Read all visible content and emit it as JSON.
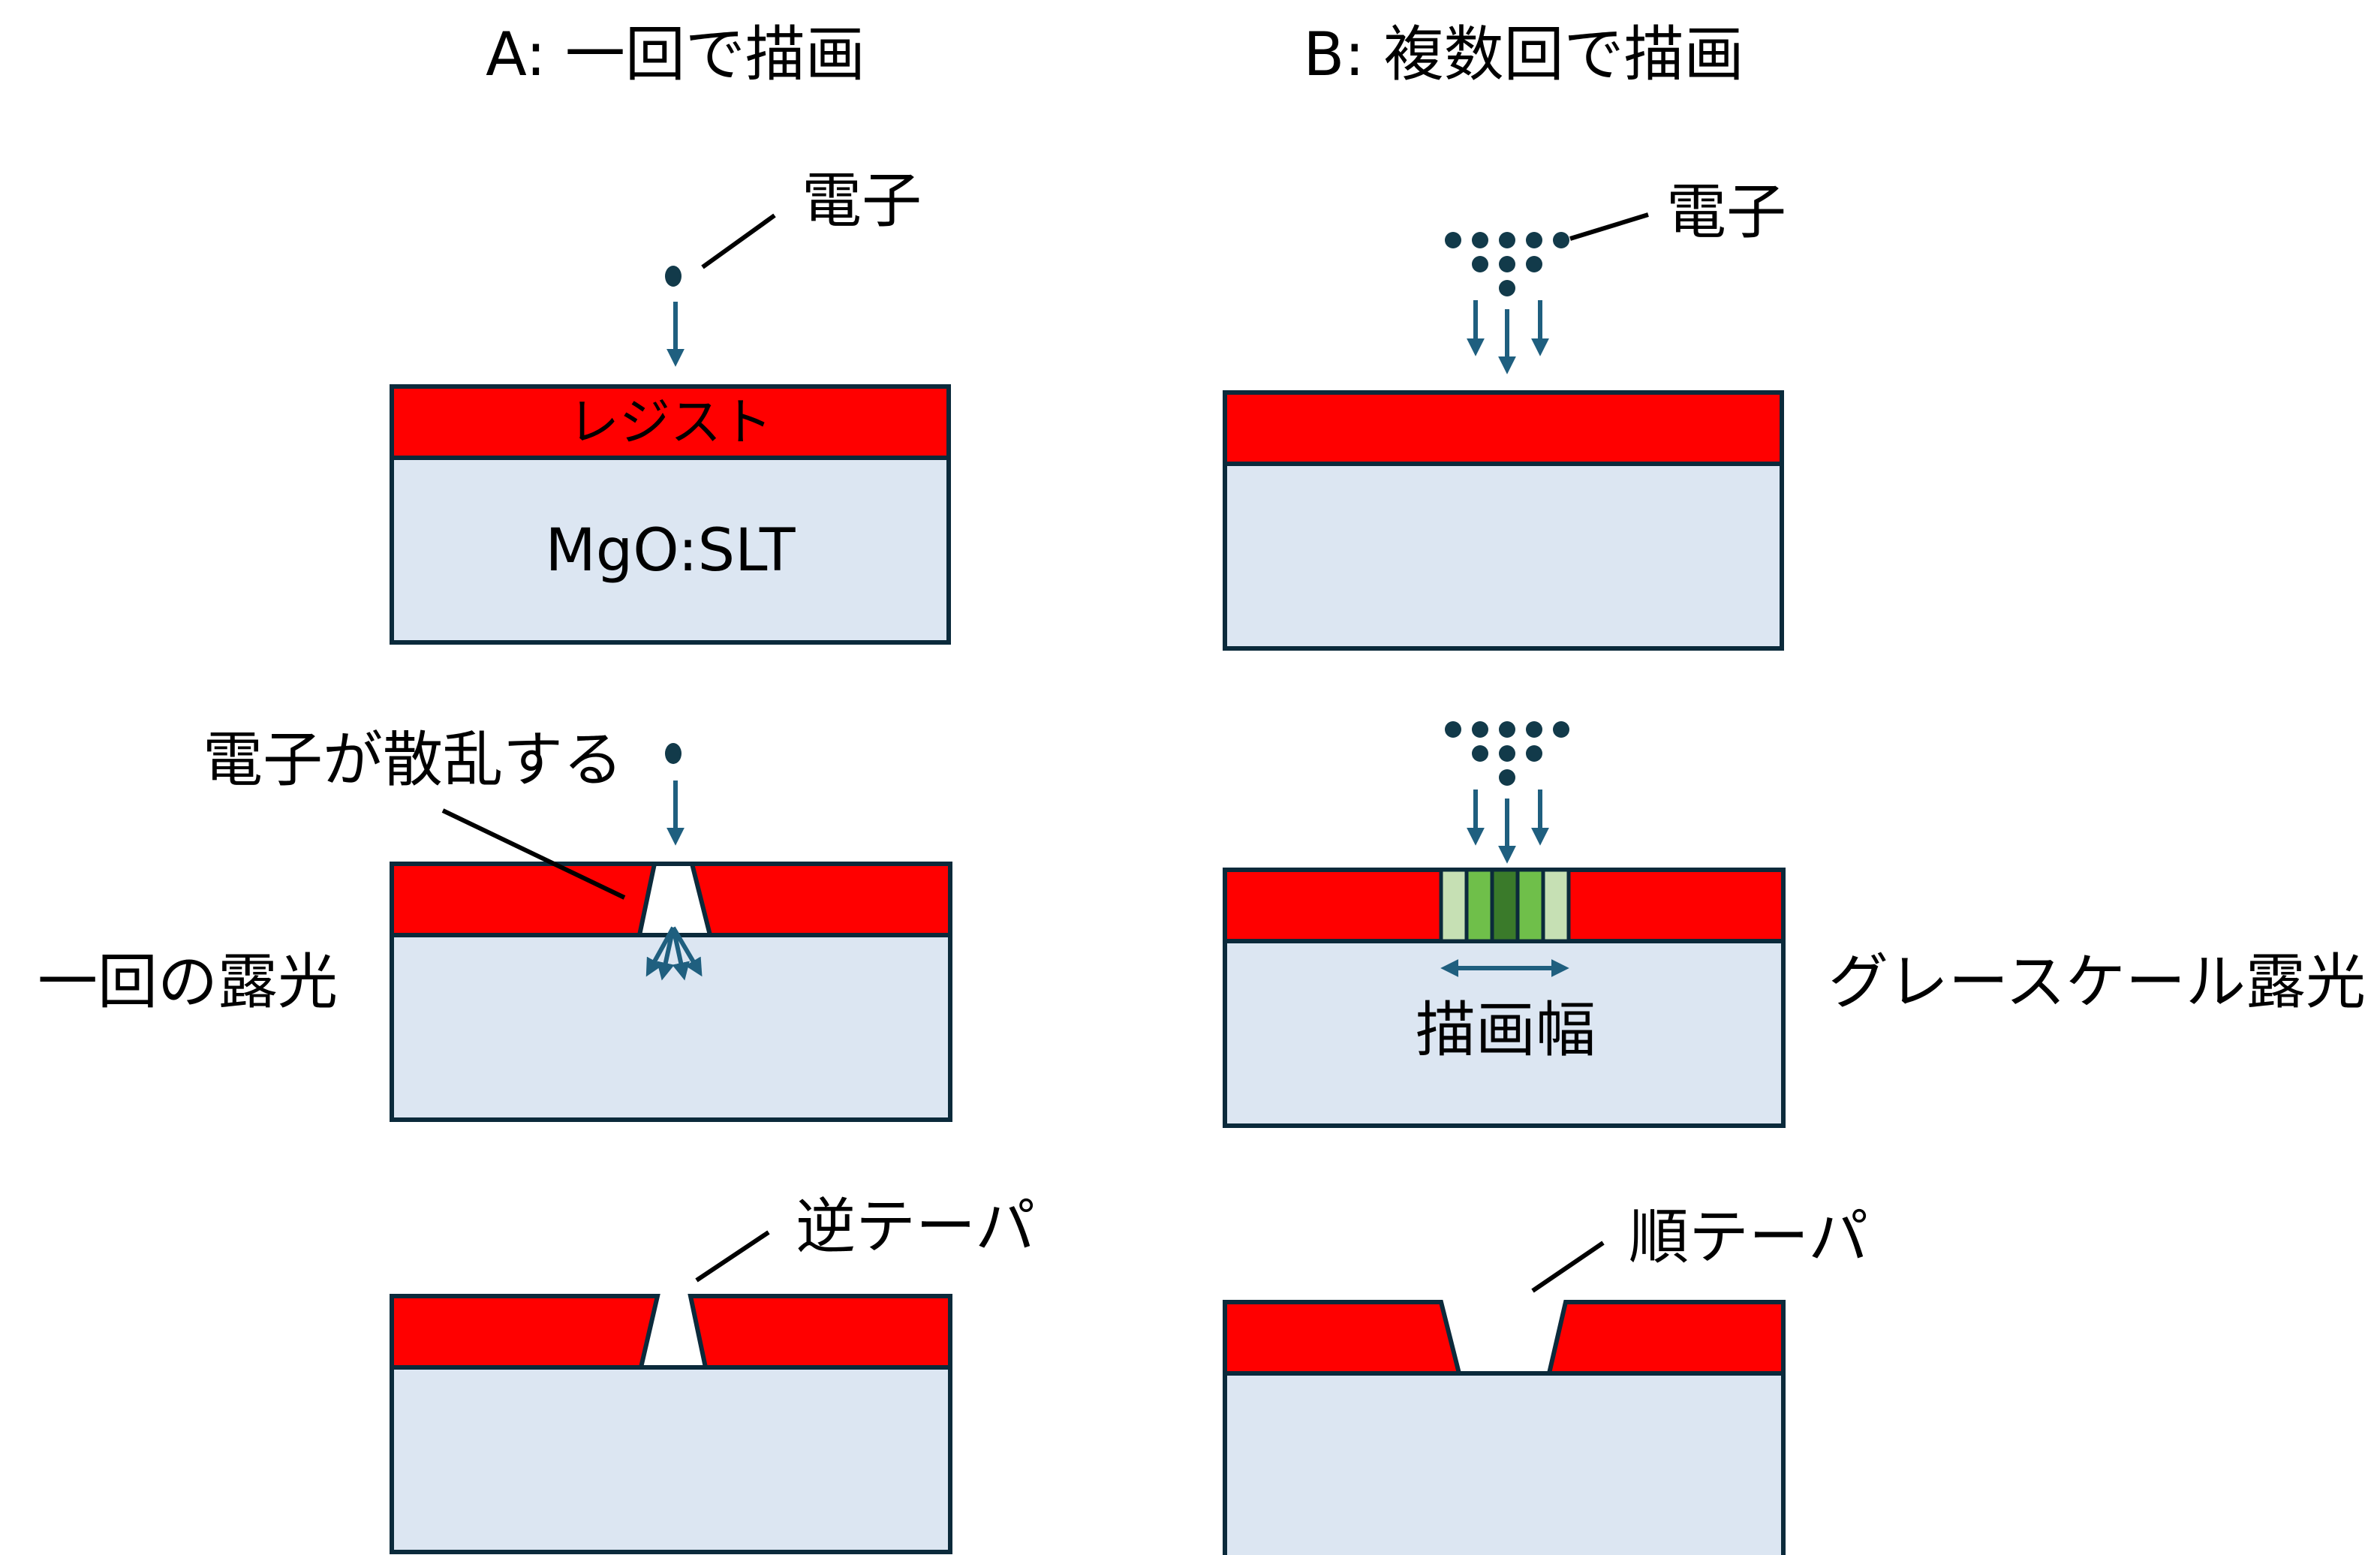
{
  "titles": {
    "a": "A: 一回で描画",
    "b": "B: 複数回で描画"
  },
  "labels": {
    "electron_a": "電子",
    "electron_b": "電子",
    "resist": "レジスト",
    "substrate": "MgO:SLT",
    "scatter": "電子が散乱する",
    "single_exposure": "一回の露光",
    "grayscale_exposure": "グレースケール露光",
    "draw_width": "描画幅",
    "reverse_taper": "逆テーパ",
    "forward_taper": "順テーパ"
  },
  "colors": {
    "resist": "#ff0000",
    "substrate": "#dce6f2",
    "outline": "#0b2a3b",
    "arrow": "#1f5f7f",
    "dot": "#123a4a",
    "gray_light": "#c6e0b4",
    "gray_mid": "#6fbf4a",
    "gray_dark": "#3a7a2a"
  }
}
